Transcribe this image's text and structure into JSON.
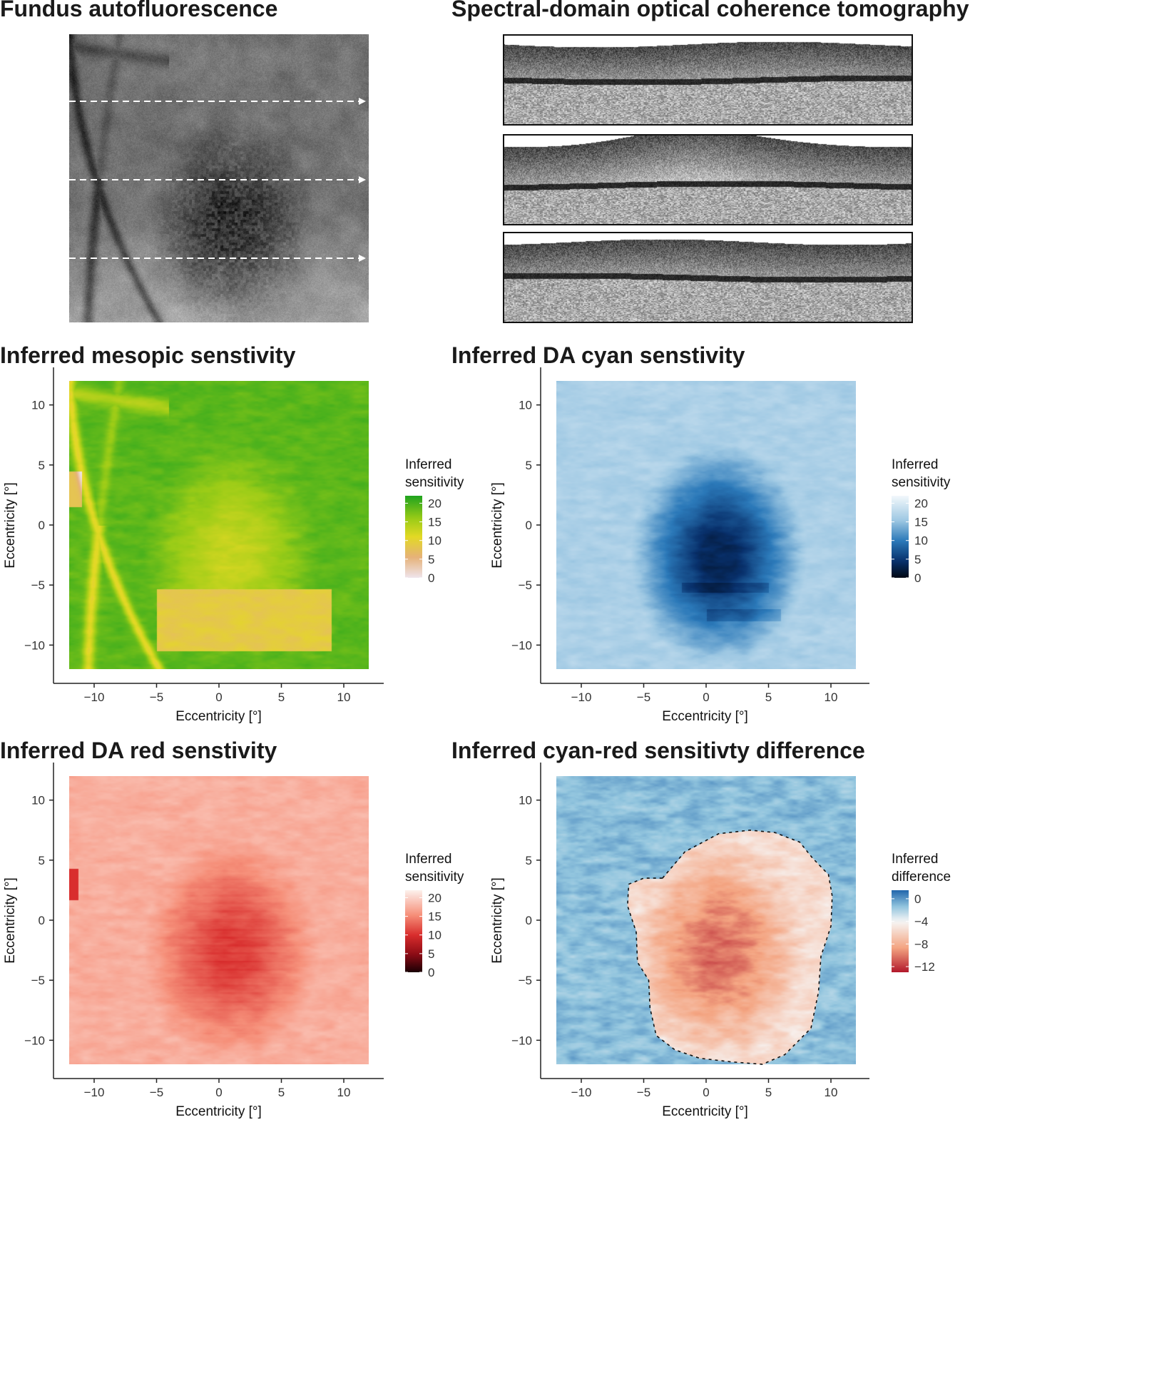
{
  "panels": {
    "fundus": {
      "title": "Fundus autofluorescence"
    },
    "oct": {
      "title": "Spectral-domain optical coherence tomography"
    }
  },
  "chart_data": [
    {
      "type": "heatmap",
      "id": "mesopic",
      "title": "Inferred mesopic senstivity",
      "xlabel": "Eccentricity [°]",
      "ylabel": "Eccentricity [°]",
      "xlim": [
        -13,
        13.5
      ],
      "ylim": [
        -13,
        12.6
      ],
      "xticks": [
        "−10",
        "−5",
        "0",
        "5",
        "10"
      ],
      "xtick_values": [
        -10,
        -5,
        0,
        5,
        10
      ],
      "yticks": [
        "10",
        "5",
        "0",
        "−5",
        "−10"
      ],
      "ytick_values": [
        10,
        5,
        0,
        -5,
        -10
      ],
      "extent": [
        -12,
        12,
        -12,
        12
      ],
      "legend": {
        "title_line1": "Inferred",
        "title_line2": "sensitivity",
        "labels": [
          "20",
          "15",
          "10",
          "5",
          "0"
        ],
        "values": [
          20,
          15,
          10,
          5,
          0
        ],
        "range": [
          0,
          22
        ],
        "colors": [
          "#1fa31f",
          "#9bcc17",
          "#e3d924",
          "#e6b27a",
          "#f2eef2"
        ]
      },
      "field": {
        "base": 20,
        "lesion_min": 12,
        "patch_value": 8,
        "vessel_value": 10,
        "spot_value": 7
      },
      "colors": {
        "low": "#efe5ec",
        "mid": "#e6b27a",
        "mid_high": "#e3d924",
        "high": "#1fa31f"
      }
    },
    {
      "type": "heatmap",
      "id": "cyan",
      "title": "Inferred DA cyan senstivity",
      "xlabel": "Eccentricity [°]",
      "ylabel": "Eccentricity [°]",
      "xlim": [
        -13,
        13.5
      ],
      "ylim": [
        -13,
        12.6
      ],
      "xticks": [
        "−10",
        "−5",
        "0",
        "5",
        "10"
      ],
      "xtick_values": [
        -10,
        -5,
        0,
        5,
        10
      ],
      "yticks": [
        "10",
        "5",
        "0",
        "−5",
        "−10"
      ],
      "ytick_values": [
        10,
        5,
        0,
        -5,
        -10
      ],
      "extent": [
        -12,
        12,
        -12,
        12
      ],
      "legend": {
        "title_line1": "Inferred",
        "title_line2": "sensitivity",
        "labels": [
          "20",
          "15",
          "10",
          "5",
          "0"
        ],
        "values": [
          20,
          15,
          10,
          5,
          0
        ],
        "range": [
          0,
          22
        ],
        "colors": [
          "#f4f8fc",
          "#a9cce4",
          "#4a94c8",
          "#0f4f98",
          "#02040c"
        ]
      },
      "field": {
        "base": 16.5,
        "lesion_min": 5,
        "band_depth": 2
      },
      "colors": {
        "low": "#000814",
        "mid": "#0c4a92",
        "mid_high": "#5a9dcd",
        "high": "#f3f8fc"
      }
    },
    {
      "type": "heatmap",
      "id": "red",
      "title": "Inferred DA red senstivity",
      "xlabel": "Eccentricity [°]",
      "ylabel": "Eccentricity [°]",
      "xlim": [
        -13,
        13.5
      ],
      "ylim": [
        -13,
        12.6
      ],
      "xticks": [
        "−10",
        "−5",
        "0",
        "5",
        "10"
      ],
      "xtick_values": [
        -10,
        -5,
        0,
        5,
        10
      ],
      "yticks": [
        "10",
        "5",
        "0",
        "−5",
        "−10"
      ],
      "ytick_values": [
        10,
        5,
        0,
        -5,
        -10
      ],
      "extent": [
        -12,
        12,
        -12,
        12
      ],
      "legend": {
        "title_line1": "Inferred",
        "title_line2": "sensitivity",
        "labels": [
          "20",
          "15",
          "10",
          "5",
          "0"
        ],
        "values": [
          20,
          15,
          10,
          5,
          0
        ],
        "range": [
          0,
          22
        ],
        "colors": [
          "#fdf0ea",
          "#f5a088",
          "#e04535",
          "#a8101a",
          "#160003"
        ]
      },
      "field": {
        "base": 17.5,
        "lesion_min": 11.5,
        "band_depth": 1.2
      },
      "colors": {
        "low": "#1a0004",
        "mid": "#b5151d",
        "mid_high": "#ef6a55",
        "high": "#fdf1ec"
      }
    },
    {
      "type": "heatmap",
      "id": "diff",
      "title": "Inferred cyan-red sensitivty difference",
      "xlabel": "Eccentricity [°]",
      "ylabel": "Eccentricity [°]",
      "xlim": [
        -13,
        13.5
      ],
      "ylim": [
        -13,
        12.6
      ],
      "xticks": [
        "−10",
        "−5",
        "0",
        "5",
        "10"
      ],
      "xtick_values": [
        -10,
        -5,
        0,
        5,
        10
      ],
      "yticks": [
        "10",
        "5",
        "0",
        "−5",
        "−10"
      ],
      "ytick_values": [
        10,
        5,
        0,
        -5,
        -10
      ],
      "extent": [
        -12,
        12,
        -12,
        12
      ],
      "legend": {
        "title_line1": "Inferred",
        "title_line2": "difference",
        "labels": [
          "0",
          "−4",
          "−8",
          "−12"
        ],
        "values": [
          0,
          -4,
          -8,
          -12
        ],
        "range": [
          -13,
          1.5
        ],
        "colors": [
          "#2166ac",
          "#f7f7f7",
          "#f4a582",
          "#b2182b"
        ]
      },
      "field": {
        "base": -1.2,
        "lesion_min": -9.5
      },
      "colors": {
        "low": "#b2182b",
        "mid": "#f4a582",
        "mid_high": "#f7f7f7",
        "high": "#2166ac"
      },
      "outline": [
        [
          -3.5,
          3.5
        ],
        [
          -1.7,
          5.7
        ],
        [
          1,
          7.2
        ],
        [
          3.5,
          7.5
        ],
        [
          5.5,
          7.3
        ],
        [
          7.5,
          6.5
        ],
        [
          8.5,
          5.2
        ],
        [
          9.8,
          3.8
        ],
        [
          10.1,
          2
        ],
        [
          10,
          -0.5
        ],
        [
          9.2,
          -3
        ],
        [
          9,
          -6
        ],
        [
          8.4,
          -9
        ],
        [
          6.3,
          -11.2
        ],
        [
          4.5,
          -12
        ],
        [
          2,
          -11.8
        ],
        [
          -0.5,
          -11.5
        ],
        [
          -2.5,
          -10.8
        ],
        [
          -4,
          -9.6
        ],
        [
          -4.5,
          -7.3
        ],
        [
          -4.6,
          -5
        ],
        [
          -5.5,
          -3.5
        ],
        [
          -5.6,
          -1
        ],
        [
          -6.3,
          1.2
        ],
        [
          -6.2,
          3
        ],
        [
          -5,
          3.5
        ],
        [
          -3.5,
          3.5
        ]
      ]
    }
  ]
}
